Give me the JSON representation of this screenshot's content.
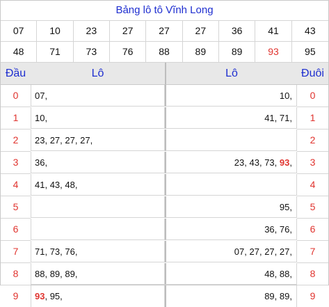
{
  "title": "Bảng lô tô Vĩnh Long",
  "numbers_row1": [
    "07",
    "10",
    "23",
    "27",
    "27",
    "27",
    "36",
    "41",
    "43"
  ],
  "numbers_row2": [
    "48",
    "71",
    "73",
    "76",
    "88",
    "89",
    "89",
    "93",
    "95"
  ],
  "highlight_number": "93",
  "headers": {
    "dau": "Đầu",
    "lo_left": "Lô",
    "lo_right": "Lô",
    "duoi": "Đuôi"
  },
  "rows": [
    {
      "dau": "0",
      "left": "07,",
      "right": "10,",
      "duoi": "0"
    },
    {
      "dau": "1",
      "left": "10,",
      "right": "41, 71,",
      "duoi": "1"
    },
    {
      "dau": "2",
      "left": "23, 27, 27, 27,",
      "right": "",
      "duoi": "2"
    },
    {
      "dau": "3",
      "left": "36,",
      "right": "23, 43, 73, 93,",
      "duoi": "3"
    },
    {
      "dau": "4",
      "left": "41, 43, 48,",
      "right": "",
      "duoi": "4"
    },
    {
      "dau": "5",
      "left": "",
      "right": "95,",
      "duoi": "5"
    },
    {
      "dau": "6",
      "left": "",
      "right": "36, 76,",
      "duoi": "6"
    },
    {
      "dau": "7",
      "left": "71, 73, 76,",
      "right": "07, 27, 27, 27,",
      "duoi": "7"
    },
    {
      "dau": "8",
      "left": "88, 89, 89,",
      "right": "48, 88,",
      "duoi": "8"
    },
    {
      "dau": "9",
      "left": "93, 95,",
      "right": "89, 89,",
      "duoi": "9"
    }
  ]
}
